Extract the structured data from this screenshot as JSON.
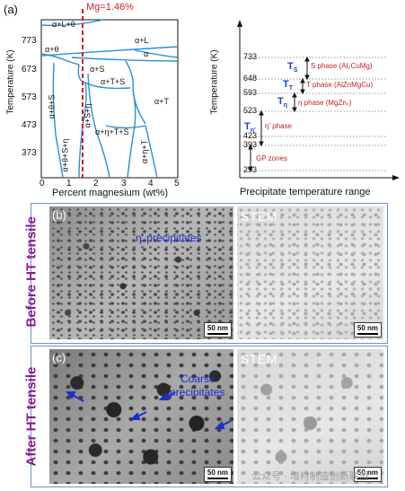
{
  "panel_a": {
    "label": "(a)",
    "mg_marker": "Mg=1.46%",
    "xlabel": "Percent magnesium (wt%)",
    "ylabel": "Temperature (K)",
    "xticks": [
      "0",
      "1",
      "2",
      "3",
      "4",
      "5"
    ],
    "yticks": [
      "373",
      "473",
      "573",
      "673",
      "773"
    ],
    "regions": [
      "α+L+θ",
      "α+θ",
      "α+L",
      "α",
      "α+S",
      "α+θ+S",
      "α+T+S",
      "α+T",
      "α+S+η",
      "α+η+T+S",
      "α+θ+S+η",
      "α+η+T"
    ],
    "colors": {
      "phase_lines": "#2a8fd6",
      "mg_line": "#cc1f1f",
      "text": "#111111"
    }
  },
  "precip_chart": {
    "xlabel": "Precipitate temperature range",
    "ylabel": "Temperature (K)",
    "ticks": [
      "733",
      "648",
      "593",
      "523",
      "423",
      "393",
      "293"
    ],
    "phases": [
      {
        "sym": "T",
        "sub": "S",
        "desc": "S phase (Al₂CuMg)"
      },
      {
        "sym": "T",
        "sub": "T",
        "desc": "T phase (AlZnMgCu)"
      },
      {
        "sym": "T",
        "sub": "η",
        "desc": "η phase (MgZn₂)"
      },
      {
        "sym": "T",
        "sub": "η'",
        "desc": "η' phase"
      },
      {
        "sym": "",
        "sub": "",
        "desc": "GP zones"
      }
    ],
    "colors": {
      "sym": "#1f3fd0",
      "desc": "#c0202a"
    }
  },
  "panel_b": {
    "label": "(b)",
    "side_title": "Before HT tensile",
    "annotation": "η' precipitates",
    "stem_label": "STEM",
    "scale_left": "50 nm",
    "scale_right": "50 nm"
  },
  "panel_c": {
    "label": "(c)",
    "side_title": "After HT tensile",
    "annotation_line1": "Coarse",
    "annotation_line2": "precipitates",
    "stem_label": "STEM",
    "scale_left": "50 nm",
    "scale_right": "50 nm"
  },
  "watermark": "公众号 · 增材制造创新联盟"
}
